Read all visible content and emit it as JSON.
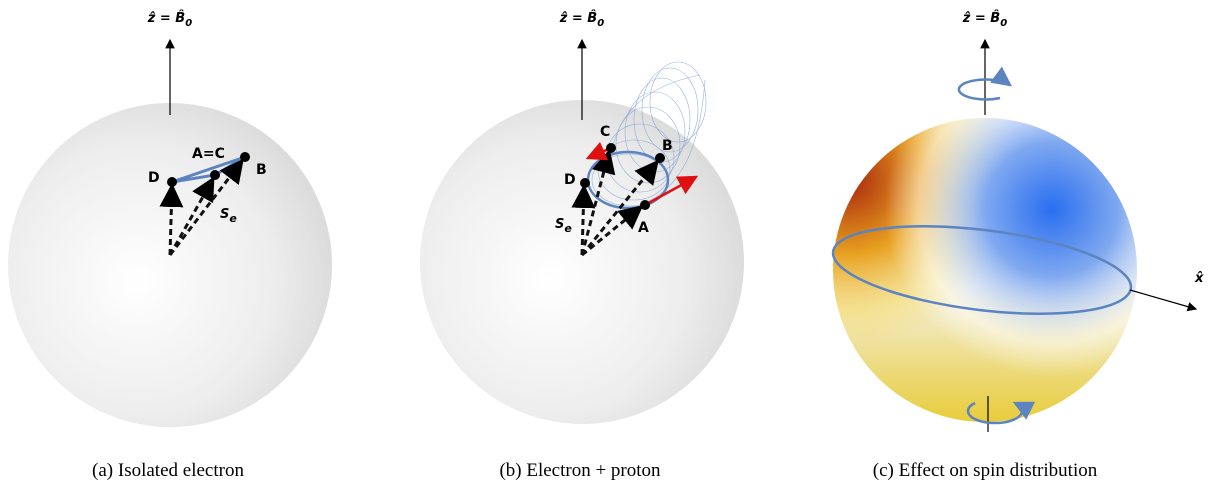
{
  "panels": [
    {
      "axis_label": {
        "main": "ẑ = B̂",
        "sub": "0"
      },
      "points": [
        "D",
        "A=C",
        "B"
      ],
      "vector_label": {
        "main": "S",
        "sub": "e"
      },
      "caption": "(a) Isolated electron"
    },
    {
      "axis_label": {
        "main": "ẑ = B̂",
        "sub": "0"
      },
      "points": [
        "C",
        "B",
        "D",
        "A"
      ],
      "vector_label": {
        "main": "S",
        "sub": "e"
      },
      "caption": "(b) Electron + proton"
    },
    {
      "axis_label": {
        "main": "ẑ = B̂",
        "sub": "0"
      },
      "x_axis_label": "x̂",
      "caption": "(c)  Effect on spin distribution"
    }
  ]
}
